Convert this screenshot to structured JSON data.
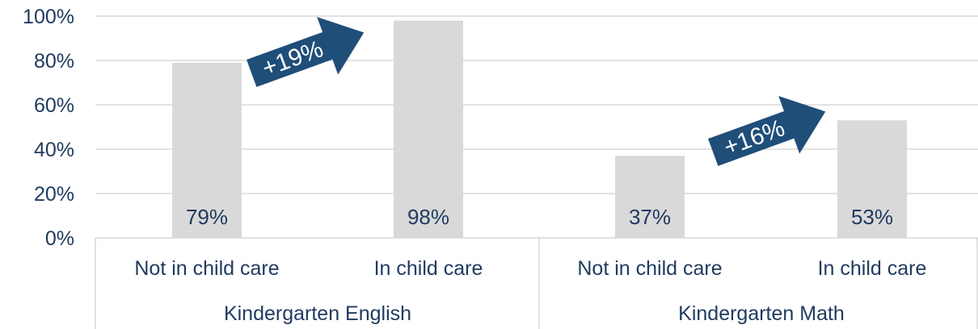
{
  "chart_data": {
    "type": "bar",
    "groups": [
      "Kindergarten English",
      "Kindergarten Math"
    ],
    "categories": [
      "Not in child care",
      "In child care",
      "Not in child care",
      "In child care"
    ],
    "values": [
      79,
      98,
      37,
      53
    ],
    "data_labels": [
      "79%",
      "98%",
      "37%",
      "53%"
    ],
    "y_ticks": [
      "0%",
      "20%",
      "40%",
      "60%",
      "80%",
      "100%"
    ],
    "ylim": [
      0,
      100
    ],
    "grid": true,
    "annotations": [
      {
        "text": "+19%",
        "group": "Kindergarten English"
      },
      {
        "text": "+16%",
        "group": "Kindergarten Math"
      }
    ],
    "colors": {
      "bar": "#d9d9d9",
      "arrow": "#1f4e79",
      "text": "#1f3a5f",
      "grid": "#d9d9d9"
    }
  }
}
